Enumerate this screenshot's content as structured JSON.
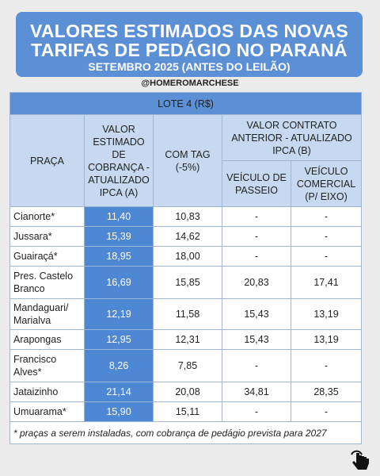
{
  "header": {
    "title_lines": [
      "VALORES ESTIMADOS DAS NOVAS",
      "TARIFAS DE PEDÁGIO NO PARANÁ",
      "SETEMBRO 2025 (ANTES DO LEILÃO)"
    ],
    "handle": "@HOMEROMARCHESE"
  },
  "table": {
    "lot": "LOTE 4 (R$)",
    "headers": {
      "place": "PRAÇA",
      "estimated": "VALOR ESTIMADO DE COBRANÇA - ATUALIZADO IPCA (A)",
      "tag": "COM TAG (-5%)",
      "previous": "VALOR CONTRATO ANTERIOR - ATUALIZADO IPCA (B)",
      "passenger": "VEÍCULO DE PASSEIO",
      "commercial": "VEÍCULO COMERCIAL (P/ EIXO)"
    },
    "rows": [
      [
        "Cianorte*",
        "11,40",
        "10,83",
        "-",
        "-"
      ],
      [
        "Jussara*",
        "15,39",
        "14,62",
        "-",
        "-"
      ],
      [
        "Guairaçá*",
        "18,95",
        "18,00",
        "-",
        "-"
      ],
      [
        "Pres. Castelo Branco",
        "16,69",
        "15,85",
        "20,83",
        "17,41"
      ],
      [
        "Mandaguari/ Marialva",
        "12,19",
        "11,58",
        "15,43",
        "13,19"
      ],
      [
        "Arapongas",
        "12,95",
        "12,31",
        "15,43",
        "13,19"
      ],
      [
        "Francisco Alves*",
        "8,26",
        "7,85",
        "-",
        "-"
      ],
      [
        "Jataizinho",
        "21,14",
        "20,08",
        "34,81",
        "28,35"
      ],
      [
        "Umuarama*",
        "15,90",
        "15,11",
        "-",
        "-"
      ]
    ],
    "footnote": "* praças a serem instaladas, com cobrança de pedágio prevista para 2027"
  }
}
